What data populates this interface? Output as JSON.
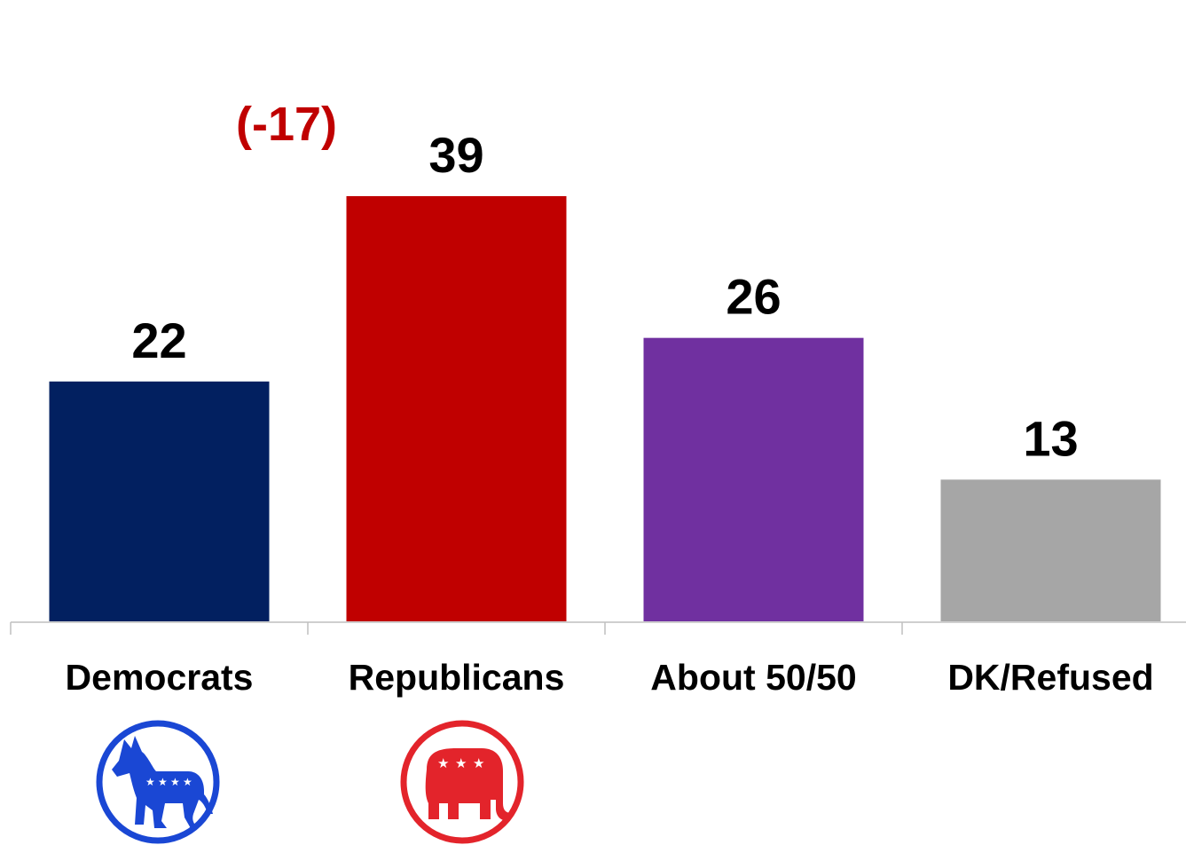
{
  "chart_data": {
    "type": "bar",
    "categories": [
      "Democrats",
      "Republicans",
      "About 50/50",
      "DK/Refused"
    ],
    "values": [
      22,
      39,
      26,
      13
    ],
    "colors": [
      "#022060",
      "#C00000",
      "#7030A0",
      "#A6A6A6"
    ],
    "annotation": {
      "text": "(-17)",
      "color": "#C00000"
    },
    "icons": [
      "democrat-donkey-icon",
      "republican-elephant-icon"
    ],
    "ylim": [
      0,
      39
    ]
  }
}
